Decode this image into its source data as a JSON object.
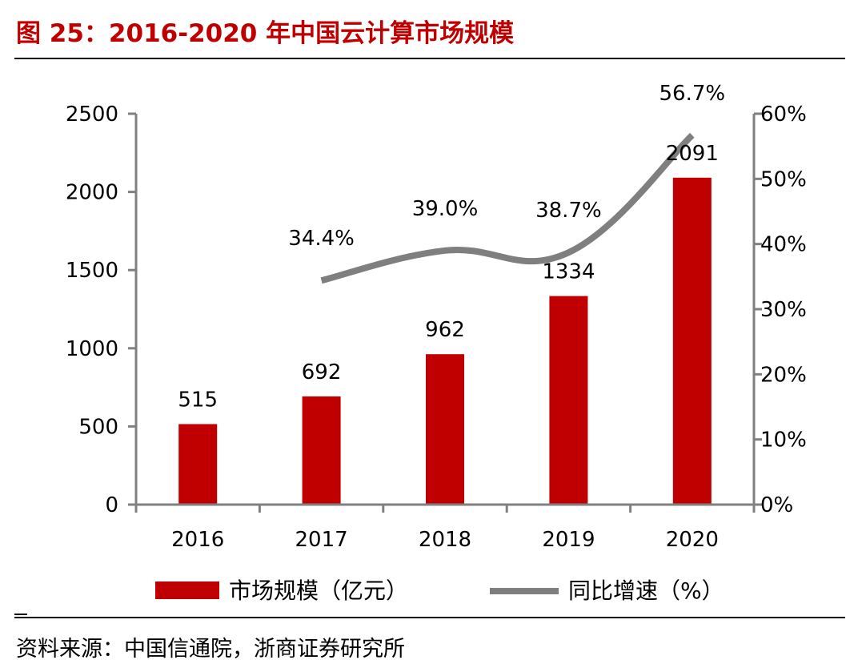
{
  "figure": {
    "title": "图 25：2016-2020 年中国云计算市场规模",
    "source": "资料来源：中国信通院，浙商证券研究所"
  },
  "chart_data": {
    "type": "bar",
    "categories": [
      "2016",
      "2017",
      "2018",
      "2019",
      "2020"
    ],
    "series": [
      {
        "name": "市场规模（亿元）",
        "type": "bar",
        "axis": "left",
        "color": "#c00000",
        "values": [
          515,
          692,
          962,
          1334,
          2091
        ],
        "labels": [
          "515",
          "692",
          "962",
          "1334",
          "2091"
        ]
      },
      {
        "name": "同比增速（%）",
        "type": "line",
        "axis": "right",
        "color": "#7f7f7f",
        "values": [
          null,
          34.4,
          39.0,
          38.7,
          56.7
        ],
        "labels": [
          "",
          "34.4%",
          "39.0%",
          "38.7%",
          "56.7%"
        ]
      }
    ],
    "y_left": {
      "min": 0,
      "max": 2500,
      "step": 500,
      "ticks": [
        "0",
        "500",
        "1000",
        "1500",
        "2000",
        "2500"
      ]
    },
    "y_right": {
      "min": 0,
      "max": 60,
      "step": 10,
      "ticks": [
        "0%",
        "10%",
        "20%",
        "30%",
        "40%",
        "50%",
        "60%"
      ]
    },
    "legend": {
      "position": "bottom",
      "items": [
        {
          "label": "市场规模（亿元）",
          "kind": "bar",
          "color": "#c00000"
        },
        {
          "label": "同比增速（%）",
          "kind": "line",
          "color": "#7f7f7f"
        }
      ]
    },
    "gridlines": false
  }
}
